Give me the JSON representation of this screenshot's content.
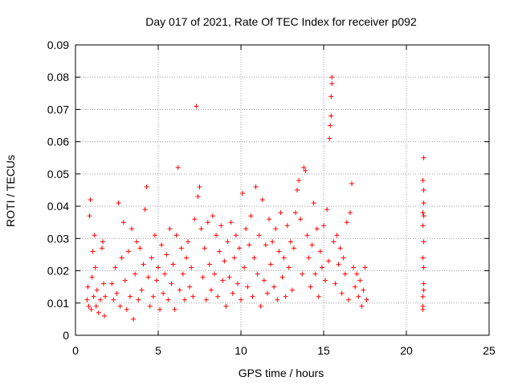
{
  "chart_data": {
    "type": "scatter",
    "title": "Day 017 of 2021, Rate Of TEC Index for receiver p092",
    "xlabel": "GPS time / hours",
    "ylabel": "ROTI / TECUs",
    "xlim": [
      0,
      25
    ],
    "ylim": [
      0,
      0.09
    ],
    "x_ticks": [
      0,
      5,
      10,
      15,
      20,
      25
    ],
    "x_tick_labels": [
      "0",
      "5",
      "10",
      "15",
      "20",
      "25"
    ],
    "y_ticks": [
      0,
      0.01,
      0.02,
      0.03,
      0.04,
      0.05,
      0.06,
      0.07,
      0.08,
      0.09
    ],
    "y_tick_labels": [
      "0",
      "0.01",
      "0.02",
      "0.03",
      "0.04",
      "0.05",
      "0.06",
      "0.07",
      "0.08",
      "0.09"
    ],
    "grid": true,
    "marker": "+",
    "marker_color": "#ff0000",
    "series": [
      {
        "points": [
          [
            0.7,
            0.011
          ],
          [
            0.75,
            0.015
          ],
          [
            0.8,
            0.009
          ],
          [
            0.85,
            0.037
          ],
          [
            0.9,
            0.042
          ],
          [
            0.95,
            0.008
          ],
          [
            1.0,
            0.018
          ],
          [
            1.05,
            0.026
          ],
          [
            1.1,
            0.012
          ],
          [
            1.15,
            0.031
          ],
          [
            1.2,
            0.021
          ],
          [
            1.25,
            0.009
          ],
          [
            1.3,
            0.014
          ],
          [
            1.4,
            0.007
          ],
          [
            1.5,
            0.011
          ],
          [
            1.6,
            0.027
          ],
          [
            1.65,
            0.029
          ],
          [
            1.7,
            0.016
          ],
          [
            1.75,
            0.006
          ],
          [
            1.8,
            0.012
          ],
          [
            2.2,
            0.016
          ],
          [
            2.3,
            0.011
          ],
          [
            2.4,
            0.021
          ],
          [
            2.5,
            0.013
          ],
          [
            2.6,
            0.041
          ],
          [
            2.7,
            0.009
          ],
          [
            2.8,
            0.024
          ],
          [
            2.9,
            0.035
          ],
          [
            3.0,
            0.017
          ],
          [
            3.1,
            0.008
          ],
          [
            3.2,
            0.026
          ],
          [
            3.3,
            0.012
          ],
          [
            3.4,
            0.033
          ],
          [
            3.5,
            0.005
          ],
          [
            3.6,
            0.019
          ],
          [
            3.7,
            0.029
          ],
          [
            3.8,
            0.011
          ],
          [
            3.9,
            0.027
          ],
          [
            4.0,
            0.014
          ],
          [
            4.1,
            0.022
          ],
          [
            4.2,
            0.039
          ],
          [
            4.3,
            0.046
          ],
          [
            4.4,
            0.018
          ],
          [
            4.5,
            0.009
          ],
          [
            4.6,
            0.024
          ],
          [
            4.7,
            0.012
          ],
          [
            4.8,
            0.031
          ],
          [
            4.9,
            0.017
          ],
          [
            5.0,
            0.021
          ],
          [
            5.1,
            0.008
          ],
          [
            5.2,
            0.028
          ],
          [
            5.3,
            0.013
          ],
          [
            5.4,
            0.019
          ],
          [
            5.5,
            0.025
          ],
          [
            5.6,
            0.011
          ],
          [
            5.7,
            0.033
          ],
          [
            5.8,
            0.016
          ],
          [
            5.9,
            0.022
          ],
          [
            6.0,
            0.008
          ],
          [
            6.1,
            0.031
          ],
          [
            6.2,
            0.052
          ],
          [
            6.3,
            0.014
          ],
          [
            6.4,
            0.027
          ],
          [
            6.5,
            0.019
          ],
          [
            6.6,
            0.011
          ],
          [
            6.7,
            0.024
          ],
          [
            6.8,
            0.029
          ],
          [
            6.9,
            0.015
          ],
          [
            7.0,
            0.021
          ],
          [
            7.1,
            0.012
          ],
          [
            7.2,
            0.036
          ],
          [
            7.3,
            0.071
          ],
          [
            7.4,
            0.043
          ],
          [
            7.5,
            0.046
          ],
          [
            7.6,
            0.033
          ],
          [
            7.7,
            0.018
          ],
          [
            7.8,
            0.027
          ],
          [
            7.9,
            0.011
          ],
          [
            8.0,
            0.035
          ],
          [
            8.1,
            0.022
          ],
          [
            8.2,
            0.014
          ],
          [
            8.3,
            0.037
          ],
          [
            8.4,
            0.019
          ],
          [
            8.5,
            0.031
          ],
          [
            8.6,
            0.012
          ],
          [
            8.7,
            0.026
          ],
          [
            8.8,
            0.034
          ],
          [
            8.9,
            0.017
          ],
          [
            9.0,
            0.023
          ],
          [
            9.1,
            0.009
          ],
          [
            9.2,
            0.029
          ],
          [
            9.3,
            0.018
          ],
          [
            9.4,
            0.035
          ],
          [
            9.5,
            0.013
          ],
          [
            9.6,
            0.024
          ],
          [
            9.7,
            0.031
          ],
          [
            9.8,
            0.016
          ],
          [
            9.9,
            0.027
          ],
          [
            10.0,
            0.011
          ],
          [
            10.1,
            0.044
          ],
          [
            10.2,
            0.021
          ],
          [
            10.3,
            0.033
          ],
          [
            10.4,
            0.015
          ],
          [
            10.5,
            0.028
          ],
          [
            10.6,
            0.037
          ],
          [
            10.7,
            0.012
          ],
          [
            10.8,
            0.024
          ],
          [
            10.9,
            0.046
          ],
          [
            11.0,
            0.019
          ],
          [
            11.1,
            0.031
          ],
          [
            11.2,
            0.009
          ],
          [
            11.3,
            0.042
          ],
          [
            11.4,
            0.017
          ],
          [
            11.5,
            0.028
          ],
          [
            11.6,
            0.013
          ],
          [
            11.7,
            0.036
          ],
          [
            11.8,
            0.022
          ],
          [
            11.9,
            0.029
          ],
          [
            12.0,
            0.015
          ],
          [
            12.1,
            0.033
          ],
          [
            12.2,
            0.011
          ],
          [
            12.3,
            0.026
          ],
          [
            12.4,
            0.038
          ],
          [
            12.5,
            0.018
          ],
          [
            12.6,
            0.024
          ],
          [
            12.7,
            0.012
          ],
          [
            12.8,
            0.034
          ],
          [
            12.9,
            0.021
          ],
          [
            13.0,
            0.029
          ],
          [
            13.1,
            0.014
          ],
          [
            13.2,
            0.027
          ],
          [
            13.3,
            0.038
          ],
          [
            13.4,
            0.045
          ],
          [
            13.5,
            0.048
          ],
          [
            13.6,
            0.036
          ],
          [
            13.7,
            0.019
          ],
          [
            13.8,
            0.052
          ],
          [
            13.9,
            0.051
          ],
          [
            14.0,
            0.031
          ],
          [
            14.1,
            0.024
          ],
          [
            14.2,
            0.015
          ],
          [
            14.3,
            0.028
          ],
          [
            14.4,
            0.041
          ],
          [
            14.5,
            0.019
          ],
          [
            14.6,
            0.033
          ],
          [
            14.7,
            0.012
          ],
          [
            14.8,
            0.026
          ],
          [
            14.9,
            0.021
          ],
          [
            15.0,
            0.034
          ],
          [
            15.1,
            0.017
          ],
          [
            15.2,
            0.039
          ],
          [
            15.3,
            0.023
          ],
          [
            15.35,
            0.061
          ],
          [
            15.4,
            0.065
          ],
          [
            15.45,
            0.068
          ],
          [
            15.45,
            0.074
          ],
          [
            15.5,
            0.078
          ],
          [
            15.5,
            0.08
          ],
          [
            15.6,
            0.029
          ],
          [
            15.7,
            0.016
          ],
          [
            15.8,
            0.031
          ],
          [
            15.9,
            0.022
          ],
          [
            16.0,
            0.027
          ],
          [
            16.1,
            0.013
          ],
          [
            16.2,
            0.024
          ],
          [
            16.3,
            0.019
          ],
          [
            16.4,
            0.035
          ],
          [
            16.5,
            0.011
          ],
          [
            16.6,
            0.038
          ],
          [
            16.7,
            0.047
          ],
          [
            16.8,
            0.021
          ],
          [
            16.9,
            0.015
          ],
          [
            17.0,
            0.019
          ],
          [
            17.1,
            0.012
          ],
          [
            17.2,
            0.017
          ],
          [
            17.3,
            0.009
          ],
          [
            17.4,
            0.014
          ],
          [
            17.5,
            0.021
          ],
          [
            17.6,
            0.011
          ],
          [
            21.0,
            0.008
          ],
          [
            21.0,
            0.009
          ],
          [
            21.0,
            0.012
          ],
          [
            21.05,
            0.014
          ],
          [
            21.05,
            0.016
          ],
          [
            21.05,
            0.021
          ],
          [
            21.0,
            0.024
          ],
          [
            21.05,
            0.029
          ],
          [
            21.0,
            0.034
          ],
          [
            21.05,
            0.037
          ],
          [
            21.0,
            0.038
          ],
          [
            21.05,
            0.041
          ],
          [
            21.05,
            0.045
          ],
          [
            21.0,
            0.048
          ],
          [
            21.05,
            0.055
          ]
        ]
      }
    ]
  }
}
